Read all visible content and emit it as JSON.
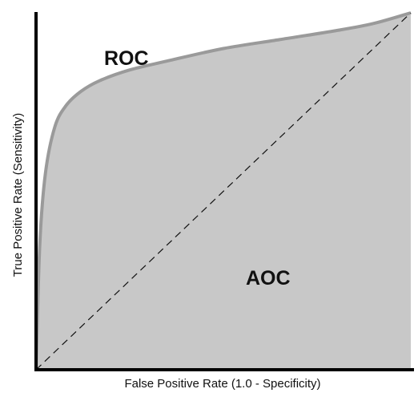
{
  "chart_data": {
    "type": "area",
    "xlabel": "False Positive Rate (1.0 - Specificity)",
    "ylabel": "True Positive Rate (Sensitivity)",
    "xlim": [
      0,
      1
    ],
    "ylim": [
      0,
      1
    ],
    "grid": false,
    "annotations": [
      "ROC",
      "AOC"
    ],
    "series": [
      {
        "x": [
          0,
          0.01,
          0.025,
          0.05,
          0.08,
          0.12,
          0.17,
          0.25,
          0.35,
          0.5,
          0.65,
          0.8,
          0.9,
          1.0
        ],
        "y": [
          0,
          0.35,
          0.55,
          0.68,
          0.74,
          0.78,
          0.81,
          0.84,
          0.865,
          0.9,
          0.925,
          0.95,
          0.97,
          1.0
        ]
      },
      {
        "x": [
          0,
          1
        ],
        "y": [
          0,
          1
        ]
      }
    ],
    "colors": {
      "area_fill": "#c8c8c8",
      "curve": "#9a9a9a",
      "diagonal": "#111111",
      "axis": "#000000"
    }
  }
}
